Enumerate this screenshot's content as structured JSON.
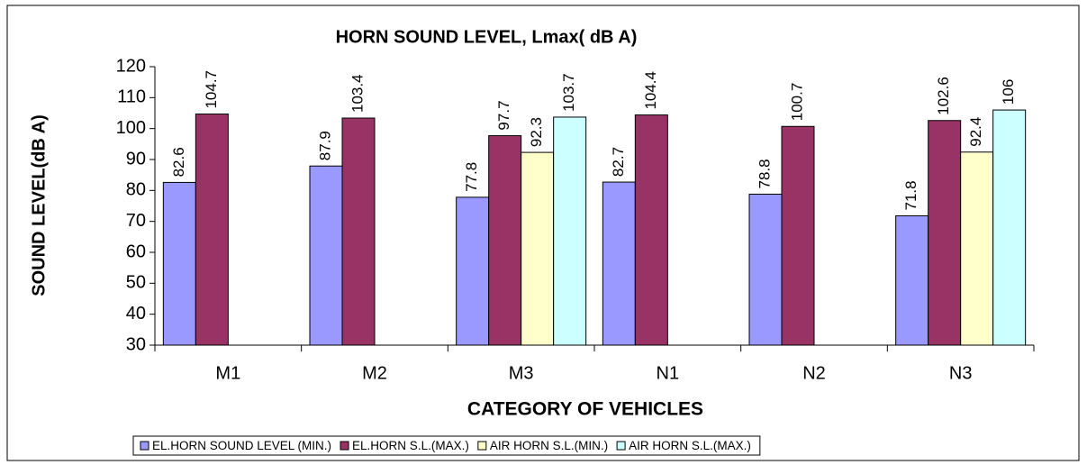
{
  "chart_data": {
    "type": "bar",
    "title": "HORN SOUND LEVEL, Lmax( dB A)",
    "x_label": "CATEGORY OF VEHICLES",
    "y_label": "SOUND LEVEL(dB A)",
    "categories": [
      "M1",
      "M2",
      "M3",
      "N1",
      "N2",
      "N3"
    ],
    "series": [
      {
        "name": "EL.HORN SOUND LEVEL (MIN.)",
        "color": "#9999ff",
        "values": [
          82.6,
          87.9,
          77.8,
          82.7,
          78.8,
          71.8
        ]
      },
      {
        "name": "EL.HORN S.L.(MAX.)",
        "color": "#993366",
        "values": [
          104.7,
          103.4,
          97.7,
          104.4,
          100.7,
          102.6
        ]
      },
      {
        "name": "AIR HORN S.L.(MIN.)",
        "color": "#ffffcc",
        "values": [
          null,
          null,
          92.3,
          null,
          null,
          92.4
        ]
      },
      {
        "name": "AIR HORN S.L.(MAX.)",
        "color": "#ccffff",
        "values": [
          null,
          null,
          103.7,
          null,
          null,
          106
        ]
      }
    ],
    "ylim": [
      30,
      120
    ],
    "yticks": [
      30,
      40,
      50,
      60,
      70,
      80,
      90,
      100,
      110,
      120
    ],
    "legend": "bottom"
  }
}
